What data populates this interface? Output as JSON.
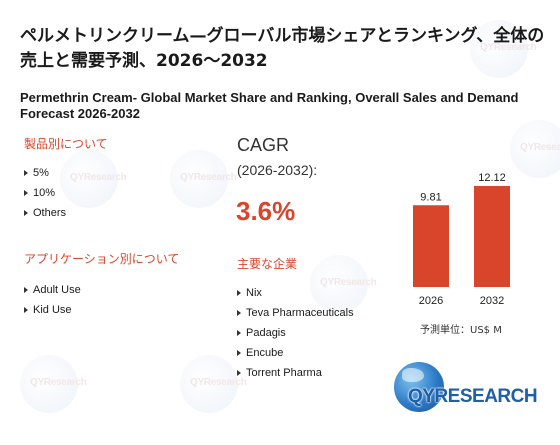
{
  "title_jp": "ペルメトリンクリーム—グローバル市場シェアとランキング、全体の売上と需要予測、2026～2032",
  "title_en": "Permethrin Cream- Global Market Share and Ranking, Overall Sales and Demand Forecast 2026-2032",
  "product_section": {
    "heading": "製品別について",
    "items": [
      "5%",
      "10%",
      "Others"
    ]
  },
  "application_section": {
    "heading": "アプリケーション別について",
    "items": [
      "Adult Use",
      "Kid Use"
    ]
  },
  "cagr": {
    "label": "CAGR",
    "period": "(2026-2032):",
    "value": "3.6%"
  },
  "companies_section": {
    "heading": "主要な企業",
    "items": [
      "Nix",
      "Teva Pharmaceuticals",
      "Padagis",
      "Encube",
      "Torrent Pharma"
    ]
  },
  "unit_label": "予測単位：US$ M",
  "logo_text": "QYRESEARCH",
  "colors": {
    "accent": "#d9452b",
    "bar": "#d9452b",
    "logo_blue": "#1d5fa8"
  },
  "chart_data": {
    "type": "bar",
    "categories": [
      "2026",
      "2032"
    ],
    "values": [
      9.81,
      12.12
    ],
    "data_labels": [
      "9.81",
      "12.12"
    ],
    "title": "",
    "xlabel": "",
    "ylabel": "",
    "ylim": [
      0,
      13.2
    ]
  }
}
